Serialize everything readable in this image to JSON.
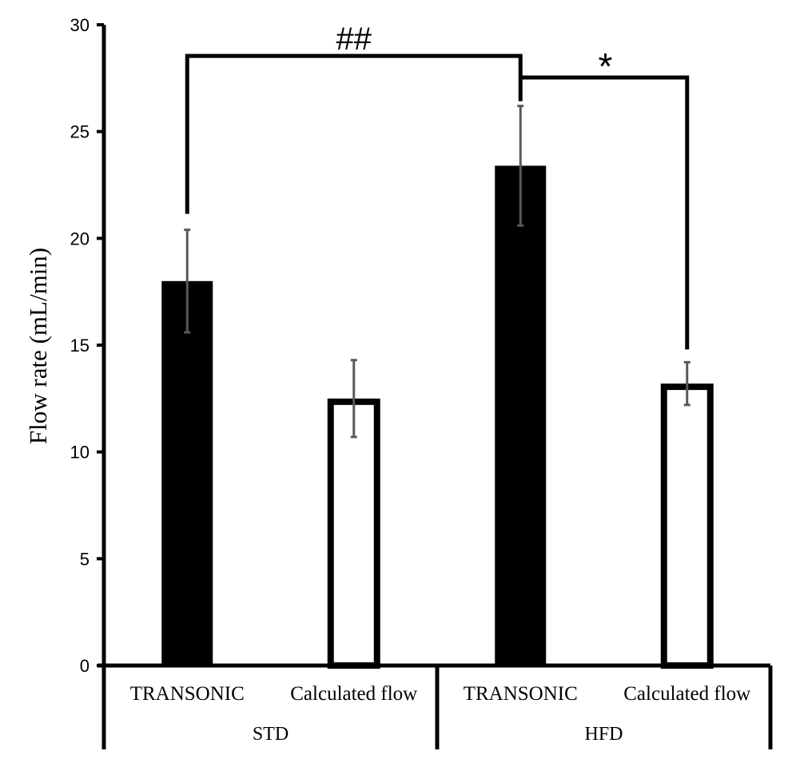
{
  "chart_data": {
    "type": "bar",
    "ylabel": "Flow rate (mL/min)",
    "ylim": [
      0,
      30
    ],
    "yticks": [
      "0",
      "5",
      "10",
      "15",
      "20",
      "25",
      "30"
    ],
    "groups": [
      {
        "label": "STD",
        "bars": [
          {
            "category": "TRANSONIC",
            "value": 18.0,
            "error": 2.4,
            "fill": "solid"
          },
          {
            "category": "Calculated flow",
            "value": 12.5,
            "error": 1.8,
            "fill": "open"
          }
        ]
      },
      {
        "label": "HFD",
        "bars": [
          {
            "category": "TRANSONIC",
            "value": 23.4,
            "error": 2.8,
            "fill": "solid"
          },
          {
            "category": "Calculated flow",
            "value": 13.2,
            "error": 1.0,
            "fill": "open"
          }
        ]
      }
    ],
    "significance": [
      {
        "label": "##",
        "between": [
          "STD TRANSONIC",
          "HFD TRANSONIC"
        ]
      },
      {
        "label": "*",
        "between": [
          "HFD TRANSONIC",
          "HFD Calculated flow"
        ]
      }
    ],
    "colors": {
      "bar": "#000000",
      "error": "#595959",
      "axis": "#000000"
    }
  }
}
